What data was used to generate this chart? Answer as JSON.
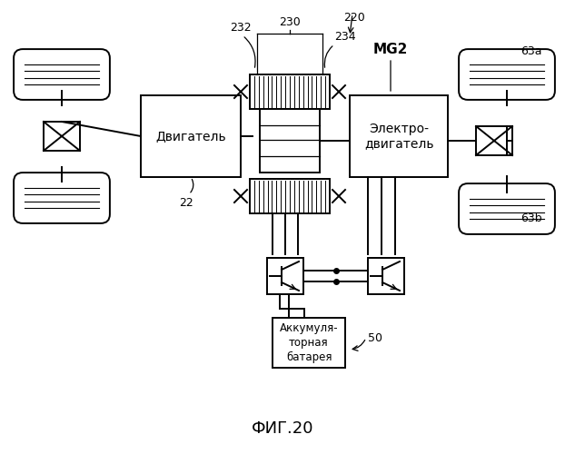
{
  "bg_color": "#ffffff",
  "lc": "#000000",
  "title": "ФИГ.20",
  "text_engine": "Двигатель",
  "text_motor": "Электро-\nдвигатель",
  "text_battery": "Аккумуля-\nторная\nбатарея",
  "label_22": "22",
  "label_50": "50",
  "label_63a": "63a",
  "label_63b": "63b",
  "label_220": "220",
  "label_230": "230",
  "label_232": "232",
  "label_234": "234",
  "label_MG2": "MG2"
}
